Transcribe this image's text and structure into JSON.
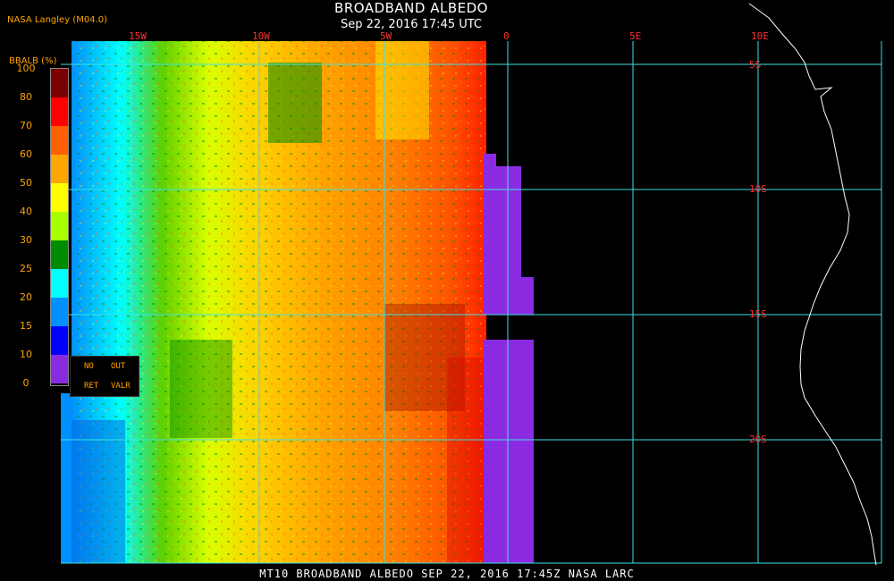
{
  "header": {
    "credit": "NASA Langley (M04.0)",
    "title": "BROADBAND ALBEDO",
    "subtitle": "Sep 22, 2016 17:45 UTC"
  },
  "longitude_labels": [
    "15W",
    "10W",
    "5W",
    "0",
    "5E",
    "10E"
  ],
  "latitude_labels": [
    "5S",
    "10S",
    "15S",
    "20S"
  ],
  "legend": {
    "title": "BBALB (%)",
    "ticks": [
      "100",
      "80",
      "70",
      "60",
      "50",
      "40",
      "30",
      "25",
      "20",
      "15",
      "10",
      "0"
    ],
    "colors": [
      "#7b0000",
      "#ff0000",
      "#ff6000",
      "#ffa500",
      "#ffff00",
      "#a8ff00",
      "#008c00",
      "#00ffff",
      "#0090ff",
      "#0000ff",
      "#8a2be2"
    ],
    "nodata": [
      "NO",
      "OUT",
      "RET",
      "VALR"
    ]
  },
  "footer": "MT10  BROADBAND ALBEDO  SEP 22, 2016 17:45Z  NASA LARC",
  "colors": {
    "grid": "#40e0e0",
    "coast": "#ffffff",
    "nodata_swath": "#8a2be2",
    "accent_text": "#ffa500",
    "label_text": "#ff3030"
  }
}
